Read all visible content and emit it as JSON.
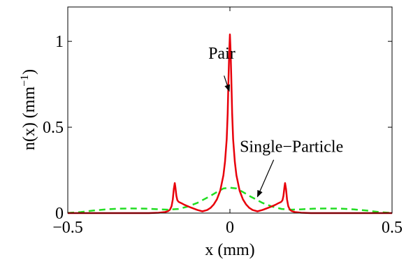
{
  "chart_data": {
    "type": "line",
    "title": "",
    "xlabel": "x (mm)",
    "ylabel": "n(x) (mm",
    "ylabel_sup": "−1",
    "ylabel_close": ")",
    "xlim": [
      -0.5,
      0.5
    ],
    "ylim": [
      0,
      1.2
    ],
    "grid": false,
    "xticks": [
      -0.5,
      0,
      0.5
    ],
    "xtick_labels": [
      "−0.5",
      "0",
      "0.5"
    ],
    "yticks": [
      0,
      0.5,
      1
    ],
    "ytick_labels": [
      "0",
      "0.5",
      "1"
    ],
    "series": [
      {
        "name": "Pair",
        "color": "#e8000b",
        "style": "solid",
        "x": [
          -0.5,
          -0.42,
          -0.35,
          -0.29,
          -0.25,
          -0.22,
          -0.2,
          -0.19,
          -0.185,
          -0.18,
          -0.176,
          -0.173,
          -0.17,
          -0.168,
          -0.165,
          -0.162,
          -0.158,
          -0.15,
          -0.14,
          -0.12,
          -0.1,
          -0.085,
          -0.07,
          -0.06,
          -0.05,
          -0.04,
          -0.03,
          -0.02,
          -0.015,
          -0.01,
          -0.007,
          -0.004,
          -0.002,
          0,
          0.002,
          0.004,
          0.007,
          0.01,
          0.015,
          0.02,
          0.03,
          0.04,
          0.05,
          0.06,
          0.07,
          0.085,
          0.1,
          0.12,
          0.14,
          0.15,
          0.158,
          0.162,
          0.165,
          0.168,
          0.17,
          0.173,
          0.176,
          0.18,
          0.185,
          0.19,
          0.2,
          0.22,
          0.25,
          0.29,
          0.35,
          0.42,
          0.5
        ],
        "y": [
          0,
          0,
          0,
          0,
          0,
          0.002,
          0.006,
          0.012,
          0.02,
          0.04,
          0.08,
          0.14,
          0.175,
          0.15,
          0.1,
          0.075,
          0.065,
          0.058,
          0.048,
          0.032,
          0.018,
          0.01,
          0.018,
          0.03,
          0.05,
          0.08,
          0.13,
          0.22,
          0.3,
          0.43,
          0.58,
          0.8,
          0.95,
          1.04,
          0.95,
          0.8,
          0.58,
          0.43,
          0.3,
          0.22,
          0.13,
          0.08,
          0.05,
          0.03,
          0.018,
          0.01,
          0.018,
          0.032,
          0.048,
          0.058,
          0.065,
          0.075,
          0.1,
          0.15,
          0.175,
          0.14,
          0.08,
          0.04,
          0.02,
          0.012,
          0.006,
          0.002,
          0,
          0,
          0,
          0,
          0
        ]
      },
      {
        "name": "Single−Particle",
        "color": "#22dd22",
        "style": "dashed",
        "x": [
          -0.5,
          -0.46,
          -0.42,
          -0.38,
          -0.34,
          -0.3,
          -0.26,
          -0.22,
          -0.19,
          -0.16,
          -0.13,
          -0.1,
          -0.08,
          -0.06,
          -0.04,
          -0.02,
          0,
          0.02,
          0.04,
          0.06,
          0.08,
          0.1,
          0.13,
          0.16,
          0.19,
          0.22,
          0.26,
          0.3,
          0.34,
          0.38,
          0.42,
          0.46,
          0.5
        ],
        "y": [
          0.001,
          0.006,
          0.015,
          0.022,
          0.026,
          0.027,
          0.026,
          0.022,
          0.02,
          0.024,
          0.038,
          0.06,
          0.08,
          0.1,
          0.123,
          0.143,
          0.148,
          0.143,
          0.123,
          0.1,
          0.08,
          0.06,
          0.038,
          0.024,
          0.02,
          0.022,
          0.026,
          0.027,
          0.026,
          0.022,
          0.015,
          0.006,
          0.001
        ]
      }
    ],
    "annotations": [
      {
        "text": "Pair",
        "label_x": -0.025,
        "label_y": 0.9,
        "arrow_from": [
          -0.018,
          0.8
        ],
        "arrow_to": [
          -0.002,
          0.71
        ]
      },
      {
        "text": "Single−Particle",
        "label_x": 0.19,
        "label_y": 0.355,
        "arrow_from": [
          0.135,
          0.31
        ],
        "arrow_to": [
          0.085,
          0.095
        ]
      }
    ]
  }
}
